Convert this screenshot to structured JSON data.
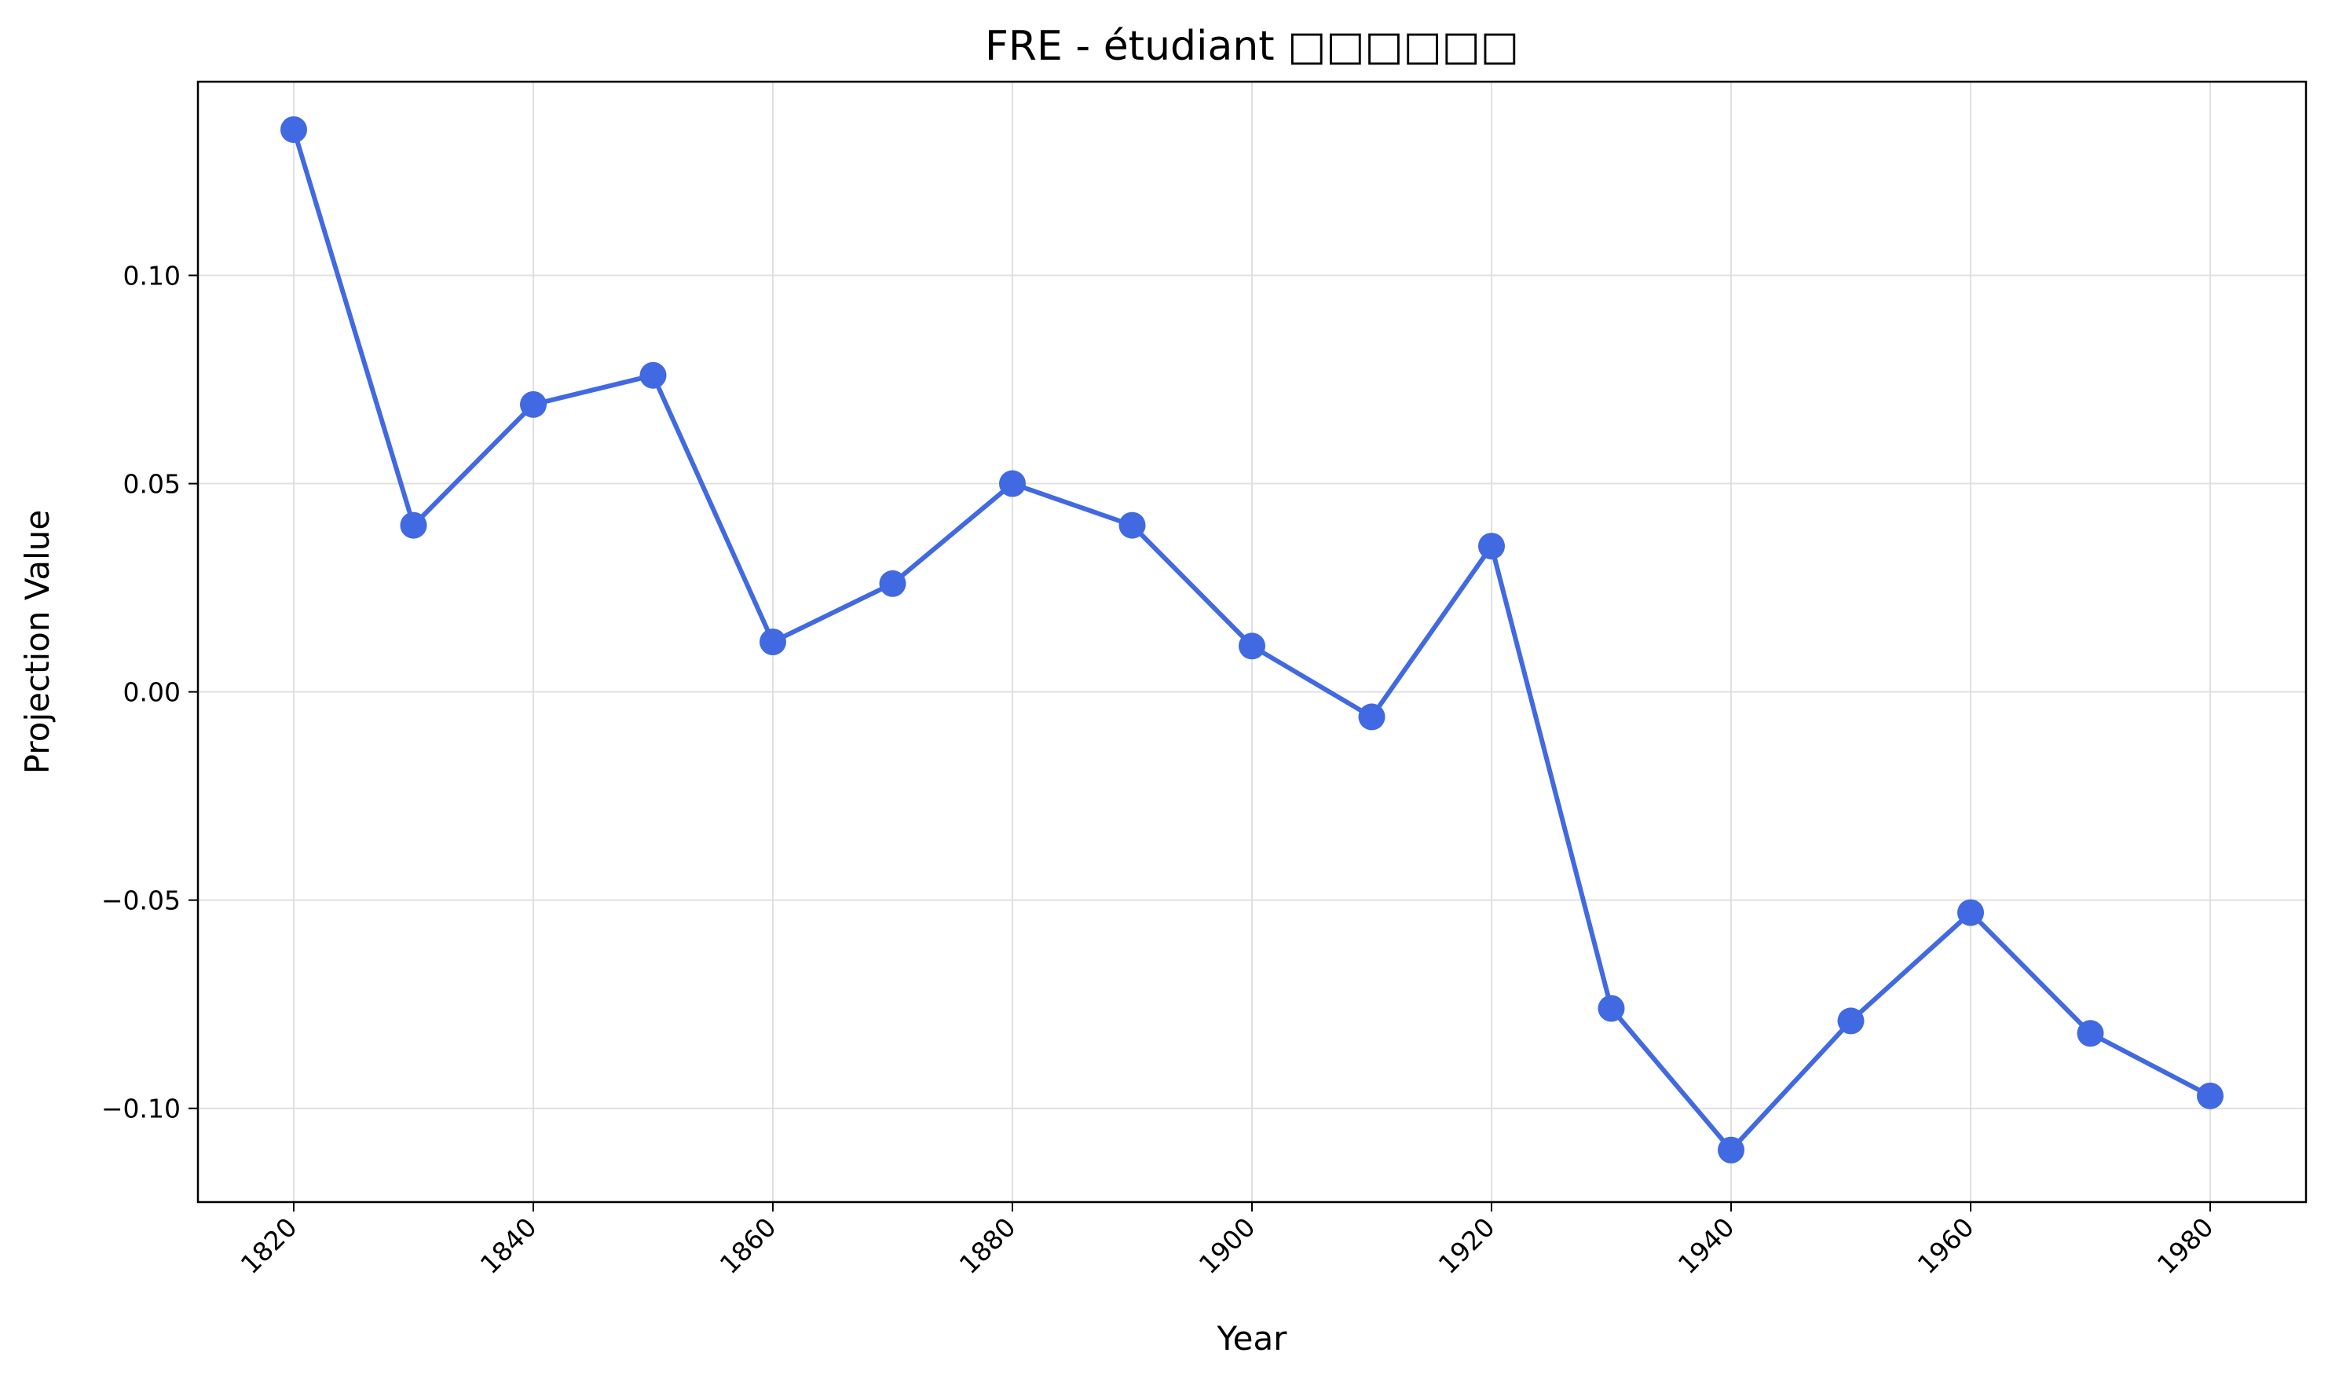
{
  "chart_data": {
    "type": "line",
    "title": "FRE - étudiant □□□□□□",
    "xlabel": "Year",
    "ylabel": "Projection Value",
    "xlim": [
      1812,
      1988
    ],
    "ylim": [
      -0.1225,
      0.1465
    ],
    "x_ticks": [
      1820,
      1840,
      1860,
      1880,
      1900,
      1920,
      1940,
      1960,
      1980
    ],
    "x_tick_labels": [
      "1820",
      "1840",
      "1860",
      "1880",
      "1900",
      "1920",
      "1940",
      "1960",
      "1980"
    ],
    "y_ticks": [
      -0.1,
      -0.05,
      0.0,
      0.05,
      0.1
    ],
    "y_tick_labels": [
      "−0.10",
      "−0.05",
      "0.00",
      "0.05",
      "0.10"
    ],
    "grid": true,
    "color": "#4169e1",
    "series": [
      {
        "x": [
          1820,
          1830,
          1840,
          1850,
          1860,
          1870,
          1880,
          1890,
          1900,
          1910,
          1920,
          1930,
          1940,
          1950,
          1960,
          1970,
          1980
        ],
        "values": [
          0.135,
          0.04,
          0.069,
          0.076,
          0.012,
          0.026,
          0.05,
          0.04,
          0.011,
          -0.006,
          0.035,
          -0.076,
          -0.11,
          -0.079,
          -0.053,
          -0.082,
          -0.097
        ]
      }
    ]
  }
}
